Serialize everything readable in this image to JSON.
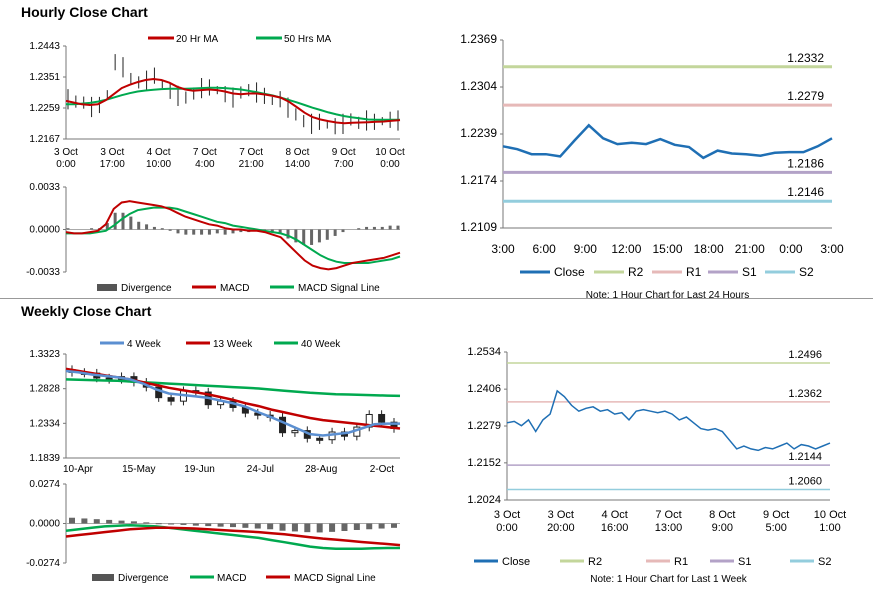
{
  "sections": {
    "hourly_title": "Hourly Close Chart",
    "weekly_title": "Weekly Close Chart"
  },
  "colors": {
    "ma20": "#c00000",
    "ma50": "#00a94f",
    "divergence": "#666666",
    "macd": "#c00000",
    "signal": "#00a94f",
    "close": "#1f6fb4",
    "r2": "#c3d69b",
    "r1": "#e6b9b8",
    "s1": "#b3a2c7",
    "s2": "#93cddd",
    "w4": "#5b8fd1",
    "w13": "#c00000",
    "w40": "#00a94f"
  },
  "chart_data": [
    {
      "id": "hourly-price",
      "type": "line",
      "legend": [
        "20 Hr MA",
        "50 Hrs MA"
      ],
      "legend_position": "top",
      "x_ticks": [
        "3 Oct\n0:00",
        "3 Oct\n17:00",
        "4 Oct\n10:00",
        "7 Oct\n4:00",
        "7 Oct\n21:00",
        "8 Oct\n14:00",
        "9 Oct\n7:00",
        "10 Oct\n0:00"
      ],
      "y_ticks": [
        "1.2443",
        "1.2351",
        "1.2259",
        "1.2167"
      ],
      "ylim": [
        1.2167,
        1.2443
      ],
      "series": [
        {
          "name": "Close",
          "values": [
            1.2285,
            1.2278,
            1.2275,
            1.2262,
            1.2268,
            1.23,
            1.2395,
            1.238,
            1.2345,
            1.2335,
            1.234,
            1.2355,
            1.233,
            1.231,
            1.2295,
            1.229,
            1.2302,
            1.2318,
            1.232,
            1.2312,
            1.23,
            1.229,
            1.2305,
            1.2312,
            1.2305,
            1.2295,
            1.228,
            1.2285,
            1.226,
            1.224,
            1.222,
            1.2212,
            1.2218,
            1.221,
            1.2205,
            1.2212,
            1.2225,
            1.2215,
            1.2222,
            1.2218,
            1.222,
            1.2224,
            1.2222
          ]
        },
        {
          "name": "20 Hr MA",
          "values": [
            1.228,
            1.2275,
            1.227,
            1.2268,
            1.227,
            1.2282,
            1.23,
            1.2318,
            1.2328,
            1.2336,
            1.2342,
            1.2345,
            1.2342,
            1.2334,
            1.2322,
            1.2314,
            1.231,
            1.2312,
            1.2314,
            1.2312,
            1.2308,
            1.2302,
            1.23,
            1.2302,
            1.2302,
            1.2299,
            1.2295,
            1.229,
            1.2278,
            1.2262,
            1.2245,
            1.2232,
            1.2225,
            1.222,
            1.2216,
            1.2214,
            1.2215,
            1.2216,
            1.2217,
            1.2218,
            1.2219,
            1.2221,
            1.2223
          ]
        },
        {
          "name": "50 Hrs MA",
          "values": [
            1.227,
            1.227,
            1.2272,
            1.2274,
            1.2278,
            1.2283,
            1.229,
            1.2297,
            1.2303,
            1.2308,
            1.2311,
            1.2313,
            1.2315,
            1.2316,
            1.2316,
            1.2316,
            1.2317,
            1.2318,
            1.2319,
            1.2319,
            1.2318,
            1.2316,
            1.2314,
            1.231,
            1.2306,
            1.2301,
            1.2296,
            1.229,
            1.2283,
            1.2276,
            1.2268,
            1.226,
            1.2253,
            1.2246,
            1.224,
            1.2235,
            1.2231,
            1.2228,
            1.2225,
            1.2224,
            1.2224,
            1.2224,
            1.2224
          ]
        }
      ]
    },
    {
      "id": "hourly-macd",
      "type": "line",
      "legend": [
        "Divergence",
        "MACD",
        "MACD Signal Line"
      ],
      "legend_position": "bottom",
      "y_ticks": [
        "0.0033",
        "0.0000",
        "-0.0033"
      ],
      "ylim": [
        -0.0033,
        0.0033
      ],
      "series": [
        {
          "name": "MACD",
          "values": [
            -0.0002,
            -0.0003,
            -0.0003,
            -0.0002,
            -0.0001,
            0.0004,
            0.0016,
            0.0021,
            0.0022,
            0.0021,
            0.002,
            0.0019,
            0.0018,
            0.0016,
            0.0013,
            0.001,
            0.0008,
            0.0006,
            0.0004,
            0.0003,
            0.0001,
            0.0,
            0.0,
            -0.0001,
            -0.0001,
            -0.0002,
            -0.0004,
            -0.0006,
            -0.0012,
            -0.0018,
            -0.0024,
            -0.0028,
            -0.003,
            -0.0031,
            -0.003,
            -0.0028,
            -0.0026,
            -0.0025,
            -0.0024,
            -0.0023,
            -0.0022,
            -0.002,
            -0.0018
          ]
        },
        {
          "name": "MACD Signal Line",
          "values": [
            -0.0003,
            -0.0003,
            -0.0003,
            -0.0003,
            -0.0002,
            -0.0001,
            0.0003,
            0.0008,
            0.0012,
            0.0015,
            0.0016,
            0.0017,
            0.0017,
            0.0017,
            0.0016,
            0.0014,
            0.0012,
            0.001,
            0.0008,
            0.0006,
            0.0005,
            0.0003,
            0.0002,
            0.0001,
            0.0,
            -0.0001,
            -0.0002,
            -0.0003,
            -0.0005,
            -0.0008,
            -0.0012,
            -0.0016,
            -0.002,
            -0.0023,
            -0.0025,
            -0.0026,
            -0.0026,
            -0.0026,
            -0.0026,
            -0.0025,
            -0.0024,
            -0.0023,
            -0.0021
          ]
        }
      ]
    },
    {
      "id": "hourly-levels",
      "type": "line",
      "legend": [
        "Close",
        "R2",
        "R1",
        "S1",
        "S2"
      ],
      "legend_position": "bottom",
      "note": "Note: 1 Hour Chart for Last 24 Hours",
      "x_ticks": [
        "3:00",
        "6:00",
        "9:00",
        "12:00",
        "15:00",
        "18:00",
        "21:00",
        "0:00",
        "3:00"
      ],
      "y_ticks": [
        "1.2369",
        "1.2304",
        "1.2239",
        "1.2174",
        "1.2109"
      ],
      "ylim": [
        1.2109,
        1.2369
      ],
      "levels": [
        {
          "name": "R2",
          "value": 1.2332,
          "label": "1.2332"
        },
        {
          "name": "R1",
          "value": 1.2279,
          "label": "1.2279"
        },
        {
          "name": "S1",
          "value": 1.2186,
          "label": "1.2186"
        },
        {
          "name": "S2",
          "value": 1.2146,
          "label": "1.2146"
        }
      ],
      "series": [
        {
          "name": "Close",
          "values": [
            1.2222,
            1.2218,
            1.2211,
            1.2211,
            1.2208,
            1.223,
            1.2251,
            1.2233,
            1.2225,
            1.2227,
            1.2225,
            1.2232,
            1.2224,
            1.2221,
            1.2206,
            1.2216,
            1.2212,
            1.2211,
            1.2209,
            1.2213,
            1.2214,
            1.2214,
            1.2222,
            1.2233
          ]
        }
      ]
    },
    {
      "id": "weekly-price",
      "type": "line",
      "legend": [
        "4 Week",
        "13 Week",
        "40 Week"
      ],
      "legend_position": "top",
      "x_ticks": [
        "10-Apr",
        "15-May",
        "19-Jun",
        "24-Jul",
        "28-Aug",
        "2-Oct"
      ],
      "y_ticks": [
        "1.3323",
        "1.2828",
        "1.2334",
        "1.1839"
      ],
      "ylim": [
        1.1839,
        1.3323
      ],
      "series": [
        {
          "name": "Close",
          "values": [
            1.306,
            1.305,
            1.298,
            1.296,
            1.3,
            1.292,
            1.285,
            1.27,
            1.265,
            1.28,
            1.278,
            1.26,
            1.265,
            1.256,
            1.248,
            1.245,
            1.242,
            1.22,
            1.223,
            1.212,
            1.21,
            1.221,
            1.215,
            1.228,
            1.246,
            1.235,
            1.226
          ]
        },
        {
          "name": "4 Week",
          "values": [
            1.308,
            1.306,
            1.303,
            1.301,
            1.299,
            1.296,
            1.29,
            1.282,
            1.276,
            1.274,
            1.272,
            1.27,
            1.266,
            1.262,
            1.257,
            1.249,
            1.242,
            1.234,
            1.226,
            1.218,
            1.216,
            1.218,
            1.22,
            1.226,
            1.232,
            1.233,
            1.233
          ]
        },
        {
          "name": "13 Week",
          "values": [
            1.311,
            1.308,
            1.305,
            1.302,
            1.299,
            1.296,
            1.292,
            1.288,
            1.284,
            1.281,
            1.278,
            1.275,
            1.271,
            1.267,
            1.262,
            1.258,
            1.253,
            1.249,
            1.245,
            1.241,
            1.238,
            1.236,
            1.234,
            1.232,
            1.23,
            1.228,
            1.226
          ]
        },
        {
          "name": "40 Week",
          "values": [
            1.296,
            1.2955,
            1.295,
            1.2945,
            1.294,
            1.293,
            1.292,
            1.291,
            1.29,
            1.289,
            1.288,
            1.287,
            1.286,
            1.285,
            1.284,
            1.283,
            1.2815,
            1.28,
            1.2785,
            1.277,
            1.276,
            1.275,
            1.2745,
            1.274,
            1.2735,
            1.273,
            1.2725
          ]
        }
      ]
    },
    {
      "id": "weekly-macd",
      "type": "line",
      "legend": [
        "Divergence",
        "MACD",
        "MACD Signal Line"
      ],
      "legend_position": "bottom",
      "y_ticks": [
        "0.0274",
        "0.0000",
        "-0.0274"
      ],
      "ylim": [
        -0.0274,
        0.0274
      ],
      "series": [
        {
          "name": "Divergence",
          "values": [
            0.004,
            0.0035,
            0.003,
            0.0025,
            0.002,
            0.0015,
            0.0008,
            0.0002,
            -0.0005,
            -0.001,
            -0.0015,
            -0.0018,
            -0.0022,
            -0.0025,
            -0.003,
            -0.0035,
            -0.004,
            -0.005,
            -0.0055,
            -0.006,
            -0.0062,
            -0.0058,
            -0.0052,
            -0.0045,
            -0.004,
            -0.0035,
            -0.003
          ]
        },
        {
          "name": "MACD",
          "values": [
            -0.005,
            -0.004,
            -0.003,
            -0.002,
            -0.0015,
            -0.0012,
            -0.0015,
            -0.002,
            -0.003,
            -0.004,
            -0.005,
            -0.006,
            -0.007,
            -0.008,
            -0.009,
            -0.01,
            -0.0115,
            -0.013,
            -0.0145,
            -0.016,
            -0.017,
            -0.0175,
            -0.0175,
            -0.0175,
            -0.0172,
            -0.017,
            -0.017
          ]
        },
        {
          "name": "MACD Signal Line",
          "values": [
            -0.009,
            -0.008,
            -0.007,
            -0.006,
            -0.005,
            -0.004,
            -0.0035,
            -0.003,
            -0.003,
            -0.0032,
            -0.0035,
            -0.004,
            -0.0045,
            -0.005,
            -0.0055,
            -0.006,
            -0.0068,
            -0.0075,
            -0.0085,
            -0.0095,
            -0.0105,
            -0.0112,
            -0.012,
            -0.0128,
            -0.0135,
            -0.0142,
            -0.015
          ]
        }
      ]
    },
    {
      "id": "weekly-levels",
      "type": "line",
      "legend": [
        "Close",
        "R2",
        "R1",
        "S1",
        "S2"
      ],
      "legend_position": "bottom",
      "note": "Note: 1 Hour Chart for Last 1 Week",
      "x_ticks": [
        "3 Oct\n0:00",
        "3 Oct\n20:00",
        "4 Oct\n16:00",
        "7 Oct\n13:00",
        "8 Oct\n9:00",
        "9 Oct\n5:00",
        "10 Oct\n1:00"
      ],
      "y_ticks": [
        "1.2534",
        "1.2406",
        "1.2279",
        "1.2152",
        "1.2024"
      ],
      "ylim": [
        1.2024,
        1.2534
      ],
      "levels": [
        {
          "name": "R2",
          "value": 1.2496,
          "label": "1.2496"
        },
        {
          "name": "R1",
          "value": 1.2362,
          "label": "1.2362"
        },
        {
          "name": "S1",
          "value": 1.2144,
          "label": "1.2144"
        },
        {
          "name": "S2",
          "value": 1.206,
          "label": "1.2060"
        }
      ],
      "series": [
        {
          "name": "Close",
          "values": [
            1.229,
            1.2295,
            1.228,
            1.23,
            1.226,
            1.23,
            1.232,
            1.24,
            1.238,
            1.235,
            1.233,
            1.234,
            1.2345,
            1.233,
            1.2335,
            1.232,
            1.2325,
            1.23,
            1.233,
            1.2335,
            1.233,
            1.2325,
            1.233,
            1.232,
            1.23,
            1.231,
            1.229,
            1.227,
            1.2265,
            1.227,
            1.226,
            1.223,
            1.22,
            1.221,
            1.22,
            1.2195,
            1.2205,
            1.22,
            1.221,
            1.222,
            1.22,
            1.2215,
            1.221,
            1.22,
            1.221,
            1.222
          ]
        }
      ]
    }
  ]
}
